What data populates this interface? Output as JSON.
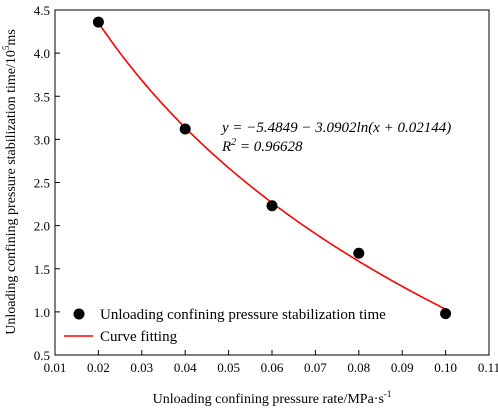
{
  "chart_data": {
    "type": "scatter",
    "xlabel_text": "Unloading confining pressure rate/MPa·s",
    "xlabel_sup": "-1",
    "ylabel_text": "Unloading confining pressure stabilization time/10",
    "ylabel_sup": "5",
    "ylabel_unit": "ms",
    "xlim": [
      0.01,
      0.11
    ],
    "ylim": [
      0.5,
      4.5
    ],
    "xticks": [
      "0.01",
      "0.02",
      "0.03",
      "0.04",
      "0.05",
      "0.06",
      "0.07",
      "0.08",
      "0.09",
      "0.10",
      "0.11"
    ],
    "yticks": [
      "0.5",
      "1.0",
      "1.5",
      "2.0",
      "2.5",
      "3.0",
      "3.5",
      "4.0",
      "4.5"
    ],
    "series": [
      {
        "name": "Unloading confining pressure stabilization time",
        "kind": "scatter",
        "color": "#000000",
        "x": [
          0.02,
          0.04,
          0.06,
          0.08,
          0.1
        ],
        "y": [
          4.36,
          3.12,
          2.23,
          1.68,
          0.98
        ]
      },
      {
        "name": "Curve fitting",
        "kind": "line",
        "color": "#ff0000",
        "a": -5.4849,
        "b": -3.0902,
        "c": 0.02144,
        "x_range": [
          0.02,
          0.1
        ]
      }
    ],
    "equation": "y = −5.4849 − 3.0902ln(x + 0.02144)",
    "r2_label": "R",
    "r2_sup": "2",
    "r2_value": " = 0.96628",
    "legend_position": "bottom-left",
    "grid": false
  }
}
